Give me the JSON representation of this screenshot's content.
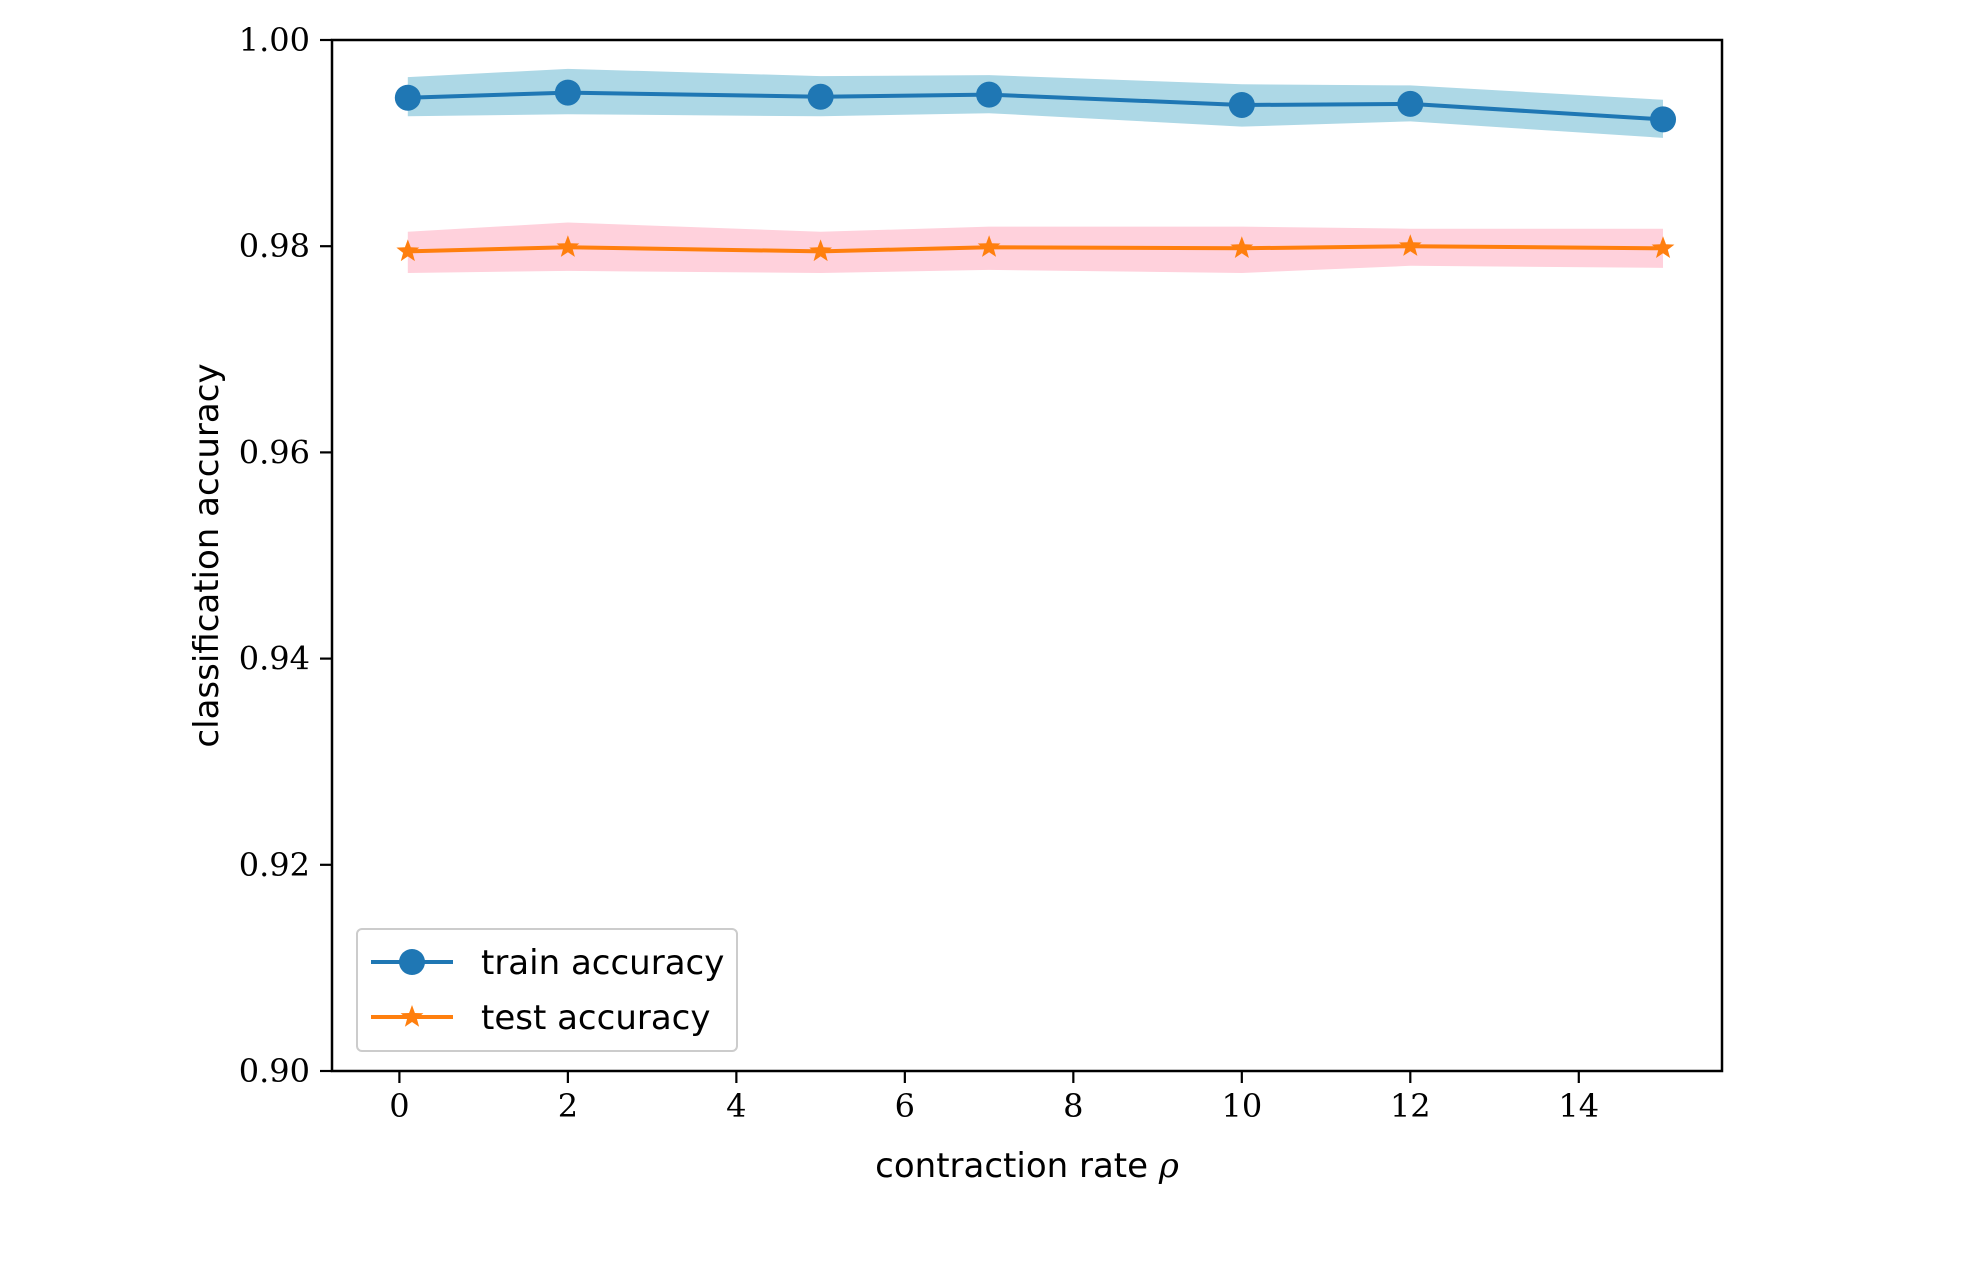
{
  "chart_data": {
    "type": "line",
    "xlabel": "contraction rate ",
    "xlabel_symbol": "ρ",
    "ylabel": "classification accuracy",
    "xlim": [
      -0.8,
      15.7
    ],
    "ylim": [
      0.9,
      1.0
    ],
    "xticks": [
      0,
      2,
      4,
      6,
      8,
      10,
      12,
      14
    ],
    "yticks": [
      0.9,
      0.92,
      0.94,
      0.96,
      0.98,
      1.0
    ],
    "ytick_labels": [
      "0.90",
      "0.92",
      "0.94",
      "0.96",
      "0.98",
      "1.00"
    ],
    "grid": false,
    "legend_position": "lower-left",
    "x": [
      0.1,
      2,
      5,
      7,
      10,
      12,
      15
    ],
    "series": [
      {
        "name": "train accuracy",
        "marker": "circle",
        "color": "#1f77b4",
        "band_color": "#add8e6",
        "values": [
          0.9944,
          0.9949,
          0.9945,
          0.9947,
          0.9937,
          0.9938,
          0.9923
        ],
        "upper": [
          0.9964,
          0.9972,
          0.9965,
          0.9966,
          0.9957,
          0.9956,
          0.9942
        ],
        "lower": [
          0.9926,
          0.9928,
          0.9926,
          0.9929,
          0.9916,
          0.9921,
          0.9905
        ]
      },
      {
        "name": "test accuracy",
        "marker": "star",
        "color": "#ff7f0e",
        "band_color": "#ffd1dc",
        "values": [
          0.9795,
          0.9799,
          0.9795,
          0.9799,
          0.9798,
          0.98,
          0.9798
        ],
        "upper": [
          0.9814,
          0.9823,
          0.9814,
          0.9819,
          0.9819,
          0.9817,
          0.9817
        ],
        "lower": [
          0.9774,
          0.9776,
          0.9774,
          0.9777,
          0.9774,
          0.9781,
          0.9779
        ]
      }
    ]
  }
}
